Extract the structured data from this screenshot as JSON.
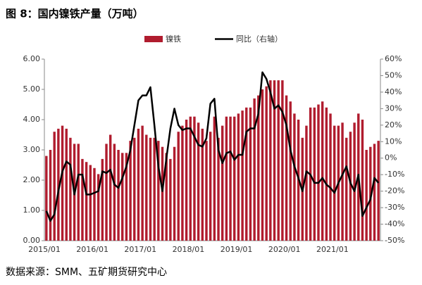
{
  "chart_data": {
    "type": "bar+line",
    "title": "图 8：国内镍铁产量（万吨）",
    "source": "数据来源：SMM、五矿期货研究中心",
    "categories": [
      "2015/01",
      null,
      null,
      null,
      null,
      null,
      null,
      null,
      null,
      null,
      null,
      null,
      "2016/01",
      null,
      null,
      null,
      null,
      null,
      null,
      null,
      null,
      null,
      null,
      null,
      "2017/01",
      null,
      null,
      null,
      null,
      null,
      null,
      null,
      null,
      null,
      null,
      null,
      "2018/01",
      null,
      null,
      null,
      null,
      null,
      null,
      null,
      null,
      null,
      null,
      null,
      "2019/01",
      null,
      null,
      null,
      null,
      null,
      null,
      null,
      null,
      null,
      null,
      null,
      "2020/01",
      null,
      null,
      null,
      null,
      null,
      null,
      null,
      null,
      null,
      null,
      null,
      "2021/01",
      null,
      null,
      null,
      null,
      null,
      null,
      null,
      null,
      null,
      null,
      null
    ],
    "series": [
      {
        "name": "镍铁",
        "type": "bar",
        "color": "#b01c2e",
        "values": [
          2.8,
          3.0,
          3.6,
          3.7,
          3.8,
          3.7,
          3.4,
          3.2,
          3.2,
          2.7,
          2.6,
          2.5,
          2.4,
          2.2,
          2.7,
          3.2,
          3.5,
          3.2,
          3.0,
          2.9,
          2.9,
          3.3,
          3.4,
          3.7,
          3.8,
          3.5,
          3.4,
          3.4,
          3.3,
          3.1,
          2.9,
          2.7,
          3.1,
          3.6,
          3.8,
          4.0,
          4.1,
          4.1,
          3.9,
          3.7,
          3.3,
          3.6,
          4.1,
          3.4,
          3.8,
          4.1,
          4.1,
          4.1,
          4.2,
          4.3,
          4.4,
          4.4,
          4.7,
          4.8,
          5.0,
          5.1,
          5.3,
          5.3,
          5.3,
          5.3,
          4.8,
          4.6,
          4.2,
          4.0,
          3.4,
          3.8,
          4.4,
          4.4,
          4.5,
          4.6,
          4.4,
          4.2,
          3.8,
          3.8,
          3.9,
          3.4,
          3.6,
          3.9,
          4.2,
          4.0,
          3.0,
          3.1,
          3.2,
          3.3
        ]
      },
      {
        "name": "同比（右轴）",
        "type": "line",
        "axis": "y2",
        "color": "#000000",
        "values": [
          -32,
          -38,
          -34,
          -20,
          -8,
          -2,
          -4,
          -22,
          -10,
          -10,
          -22,
          -22,
          -21,
          -20,
          -8,
          -9,
          -7,
          -16,
          -18,
          -12,
          -5,
          5,
          20,
          35,
          38,
          38,
          43,
          20,
          -5,
          -20,
          0,
          18,
          30,
          20,
          17,
          18,
          18,
          13,
          8,
          7,
          12,
          33,
          36,
          5,
          -3,
          3,
          4,
          -1,
          2,
          2,
          16,
          18,
          18,
          27,
          52,
          48,
          40,
          30,
          32,
          28,
          20,
          5,
          -5,
          -12,
          -20,
          -8,
          -10,
          -15,
          -15,
          -12,
          -16,
          -18,
          -21,
          -15,
          -10,
          -5,
          -15,
          -20,
          -10,
          -35,
          -30,
          -25,
          -12,
          -15
        ]
      }
    ],
    "ylim": [
      0,
      6
    ],
    "yticks": [
      {
        "value": 0,
        "label": "0.00"
      },
      {
        "value": 1,
        "label": "1.00"
      },
      {
        "value": 2,
        "label": "2.00"
      },
      {
        "value": 3,
        "label": "3.00"
      },
      {
        "value": 4,
        "label": "4.00"
      },
      {
        "value": 5,
        "label": "5.00"
      },
      {
        "value": 6,
        "label": "6.00"
      }
    ],
    "y2lim": [
      -50,
      60
    ],
    "y2ticks": [
      {
        "value": -50,
        "label": "-50%"
      },
      {
        "value": -40,
        "label": "-40%"
      },
      {
        "value": -30,
        "label": "-30%"
      },
      {
        "value": -20,
        "label": "-20%"
      },
      {
        "value": -10,
        "label": "-10%"
      },
      {
        "value": 0,
        "label": "0%"
      },
      {
        "value": 10,
        "label": "10%"
      },
      {
        "value": 20,
        "label": "20%"
      },
      {
        "value": 30,
        "label": "30%"
      },
      {
        "value": 40,
        "label": "40%"
      },
      {
        "value": 50,
        "label": "50%"
      },
      {
        "value": 60,
        "label": "60%"
      }
    ],
    "grid": false,
    "legend": "top"
  }
}
